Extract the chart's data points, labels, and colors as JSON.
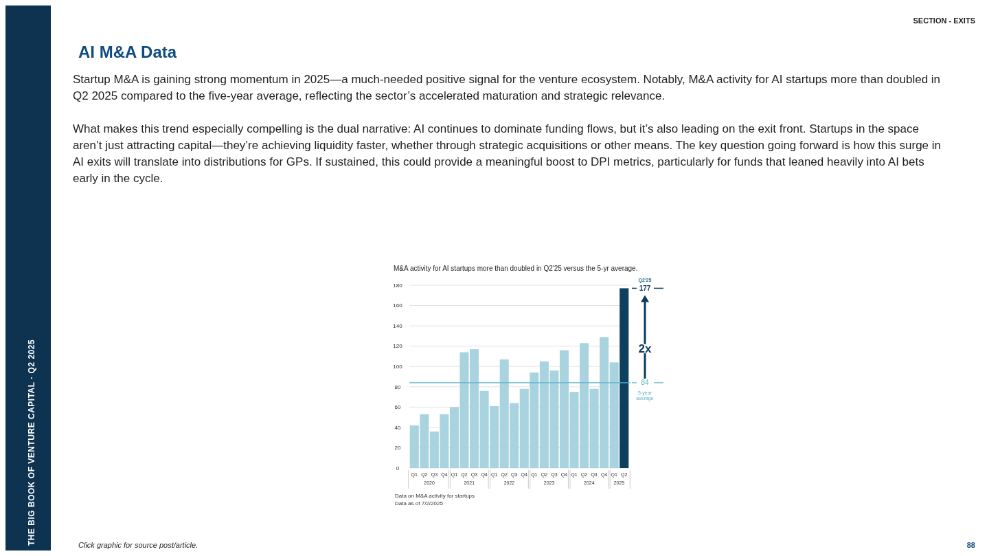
{
  "chart_data": {
    "type": "bar",
    "title": "AI M&A Data",
    "subtitle": "M&A activity for AI startups more than doubled in Q2'25 versus the 5-yr average.",
    "categories": [
      "Q1",
      "Q2",
      "Q3",
      "Q4",
      "Q1",
      "Q2",
      "Q3",
      "Q4",
      "Q1",
      "Q2",
      "Q3",
      "Q4",
      "Q1",
      "Q2",
      "Q3",
      "Q4",
      "Q1",
      "Q2",
      "Q3",
      "Q4",
      "Q1",
      "Q2"
    ],
    "values": [
      42,
      53,
      36,
      53,
      60,
      114,
      117,
      76,
      61,
      107,
      64,
      78,
      94,
      105,
      96,
      116,
      75,
      123,
      78,
      129,
      104,
      177
    ],
    "colors": [
      "#a9d4df",
      "#a9d4df",
      "#a9d4df",
      "#a9d4df",
      "#a9d4df",
      "#a9d4df",
      "#a9d4df",
      "#a9d4df",
      "#a9d4df",
      "#a9d4df",
      "#a9d4df",
      "#a9d4df",
      "#a9d4df",
      "#a9d4df",
      "#a9d4df",
      "#a9d4df",
      "#a9d4df",
      "#a9d4df",
      "#a9d4df",
      "#a9d4df",
      "#a9d4df",
      "#0d3f5e"
    ],
    "value_labels": [
      null,
      null,
      null,
      null,
      null,
      null,
      null,
      null,
      null,
      null,
      null,
      null,
      null,
      null,
      null,
      null,
      null,
      null,
      null,
      null,
      null,
      "177"
    ],
    "ylim": [
      0,
      180
    ],
    "yticks": [
      0,
      20,
      40,
      60,
      80,
      100,
      120,
      140,
      160,
      180
    ],
    "grid": "y",
    "ref_lines": [
      {
        "axis": "y",
        "value": 84,
        "label": "84",
        "color": "#5fb3c8"
      }
    ],
    "annotations": [
      "Startup M&A is gaining strong momentum in 2025—a much-needed positive signal for the venture ecosystem. Notably, M&A activity for AI startups more than doubled in Q2 2025 compared to the five-year average, reflecting the sector’s accelerated maturation and strategic relevance.",
      "What makes this trend especially compelling is the dual narrative: AI continues to dominate funding flows, but it’s also leading on the exit front. Startups in the space aren’t just attracting capital—they’re achieving liquidity faster, whether through strategic acquisitions or other means. The key question going forward is how this surge in AI exits will translate into distributions for GPs. If sustained, this could provide a meaningful boost to DPI metrics, particularly for funds that leaned heavily into AI bets early in the cycle.",
      "SECTION - EXITS",
      "THE BIG BOOK OF VENTURE CAPITAL · Q2 2025",
      "Click graphic for source post/article.",
      "88",
      "Data on M&A activity for startups",
      "Data as of 7/2/2025",
      "2020",
      "2021",
      "2022",
      "2023",
      "2024",
      "2025",
      "Q2'25",
      "2x",
      "5-year average"
    ]
  }
}
